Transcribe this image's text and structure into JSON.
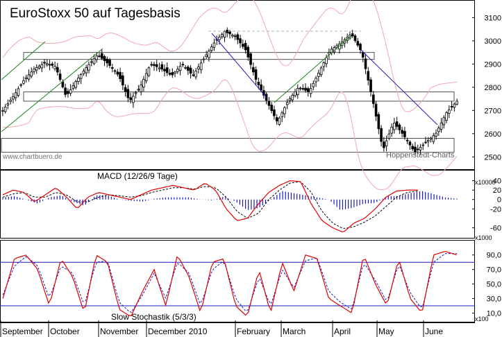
{
  "chart_data": [
    {
      "type": "candlestick",
      "title": "EuroStoxx 50 auf Tagesbasis",
      "watermark_left": "www.chartbuero.de",
      "watermark_right": "Hoppenstedt-Charts",
      "ylim": [
        2450,
        3170
      ],
      "yticks": [
        2500,
        2600,
        2700,
        2800,
        2900,
        3000,
        3100
      ],
      "series": [
        {
          "name": "",
          "values": [
            2700,
            2760,
            2830,
            2880,
            2905,
            2890,
            2760,
            2830,
            2890,
            2940,
            2900,
            2850,
            2740,
            2800,
            2900,
            2880,
            2850,
            2900,
            2850,
            2920,
            2990,
            3040,
            3020,
            2960,
            2830,
            2740,
            2650,
            2740,
            2800,
            2780,
            2870,
            2960,
            2990,
            3030,
            2950,
            2750,
            2530,
            2650,
            2590,
            2520,
            2560,
            2600,
            2690,
            2740
          ]
        }
      ],
      "horizontal_bands": [
        [
          2920,
          2950
        ],
        [
          2740,
          2780
        ],
        [
          2520,
          2580
        ]
      ],
      "colors": {
        "up": "#000000",
        "down": "#000000",
        "bollinger": "#f0a8b0",
        "trend_down": "#2020c0",
        "trend_up": "#208020",
        "band": "#505050"
      }
    },
    {
      "type": "macd",
      "label": "MACD (12/26/9 Tage)",
      "ylim": [
        -80,
        60
      ],
      "yticks": [
        40,
        20,
        0,
        -20,
        -60
      ],
      "y_unit": "x10000",
      "series": [
        {
          "name": "",
          "values": [
            10,
            20,
            15,
            -5,
            10,
            25,
            5,
            -20,
            5,
            15,
            10,
            5,
            0,
            10,
            20,
            25,
            30,
            25,
            20,
            35,
            20,
            -20,
            -45,
            -40,
            -10,
            15,
            30,
            40,
            38,
            -10,
            -45,
            -60,
            -70,
            -50,
            -40,
            -20,
            5,
            18,
            20,
            20
          ]
        },
        {
          "name": "",
          "values": [
            5,
            12,
            15,
            5,
            5,
            15,
            10,
            -5,
            -5,
            5,
            10,
            8,
            5,
            8,
            15,
            20,
            25,
            25,
            22,
            28,
            25,
            5,
            -25,
            -40,
            -30,
            0,
            20,
            35,
            38,
            15,
            -25,
            -50,
            -62,
            -58,
            -48,
            -35,
            -15,
            5,
            15,
            18
          ]
        }
      ],
      "colors": {
        "macd": "#e00000",
        "signal": "#000000",
        "histogram": "#1818c0"
      }
    },
    {
      "type": "stochastic",
      "label": "Slow Stochastik (5/3/3)",
      "ylim": [
        0,
        105
      ],
      "yticks": [
        90.0,
        70.0,
        50.0,
        30.0,
        10.0
      ],
      "ytick_labels": [
        "90,0",
        "70,0",
        "50,0",
        "30,0",
        "10,0"
      ],
      "y_unit": "x1000",
      "y_unit_bottom": "x100",
      "levels": [
        80,
        20
      ],
      "series": [
        {
          "name": "",
          "values": [
            30,
            85,
            90,
            70,
            20,
            85,
            60,
            10,
            90,
            80,
            15,
            5,
            40,
            70,
            20,
            90,
            60,
            10,
            80,
            85,
            20,
            5,
            70,
            10,
            80,
            40,
            90,
            85,
            30,
            20,
            10,
            90,
            50,
            20,
            85,
            30,
            10,
            90,
            95,
            90
          ]
        },
        {
          "name": "",
          "values": [
            35,
            75,
            88,
            75,
            30,
            75,
            65,
            20,
            80,
            82,
            25,
            10,
            35,
            65,
            30,
            80,
            65,
            20,
            70,
            82,
            30,
            10,
            60,
            20,
            70,
            45,
            82,
            86,
            40,
            25,
            15,
            80,
            55,
            25,
            78,
            38,
            15,
            80,
            92,
            92
          ]
        }
      ],
      "colors": {
        "k": "#e00000",
        "d": "#1818c0",
        "level": "#1818c0"
      }
    }
  ],
  "x_axis": {
    "labels": [
      "September",
      "October",
      "November",
      "December 2010",
      "February",
      "March",
      "April",
      "May",
      "June"
    ]
  }
}
